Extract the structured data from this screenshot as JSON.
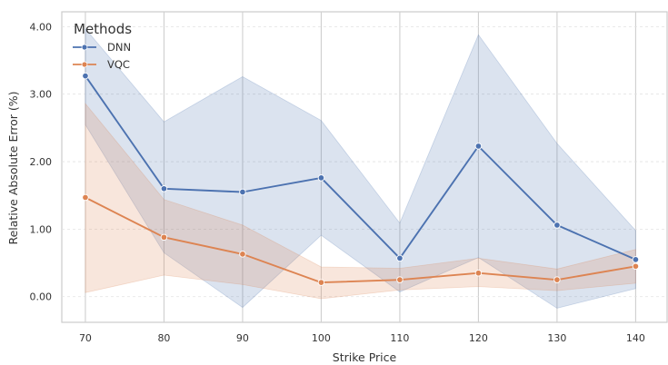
{
  "chart_data": {
    "type": "line",
    "xlabel": "Strike Price",
    "ylabel": "Relative Absolute Error (%)",
    "x": [
      70,
      80,
      90,
      100,
      110,
      120,
      130,
      140
    ],
    "x_tick_labels": [
      "70",
      "80",
      "90",
      "100",
      "110",
      "120",
      "130",
      "140"
    ],
    "y_tick_values": [
      0,
      1,
      2,
      3,
      4
    ],
    "y_tick_labels": [
      "0.00",
      "1.00",
      "2.00",
      "3.00",
      "4.00"
    ],
    "xlim": [
      67,
      144
    ],
    "ylim": [
      -0.38,
      4.22
    ],
    "grid": true,
    "legend": {
      "title": "Methods",
      "placement": "top-left"
    },
    "series": [
      {
        "name": "DNN",
        "color": "#4c72b0",
        "band_color": "#4c72b0",
        "values": [
          3.27,
          1.6,
          1.55,
          1.76,
          0.57,
          2.23,
          1.06,
          0.55
        ],
        "lower": [
          2.55,
          0.65,
          -0.16,
          0.91,
          0.07,
          0.58,
          -0.17,
          0.12
        ],
        "upper": [
          3.97,
          2.59,
          3.26,
          2.61,
          1.09,
          3.88,
          2.27,
          0.98
        ]
      },
      {
        "name": "VQC",
        "color": "#dd8452",
        "band_color": "#dd8452",
        "values": [
          1.47,
          0.88,
          0.63,
          0.21,
          0.25,
          0.35,
          0.25,
          0.45
        ],
        "lower": [
          0.06,
          0.32,
          0.18,
          -0.03,
          0.1,
          0.15,
          0.09,
          0.2
        ],
        "upper": [
          2.86,
          1.44,
          1.06,
          0.44,
          0.42,
          0.57,
          0.41,
          0.7
        ]
      }
    ]
  }
}
